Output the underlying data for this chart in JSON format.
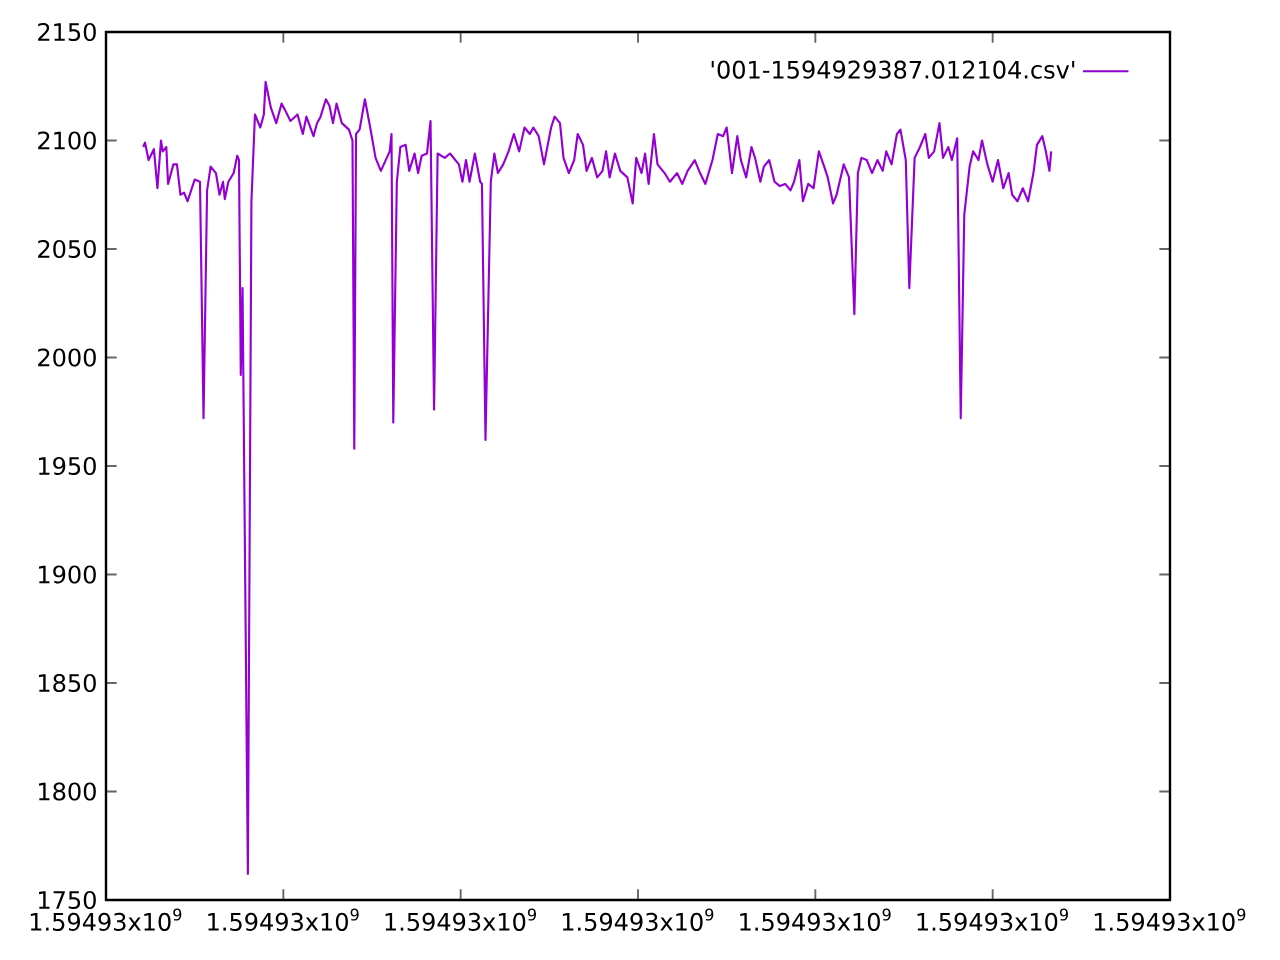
{
  "chart_data": {
    "type": "line",
    "x": [
      1594929381,
      1594929382,
      1594929384,
      1594929387,
      1594929389,
      1594929391,
      1594929392,
      1594929394,
      1594929395,
      1594929398,
      1594929400,
      1594929402,
      1594929404,
      1594929406,
      1594929410,
      1594929413,
      1594929415,
      1594929417,
      1594929419,
      1594929422,
      1594929424,
      1594929426,
      1594929427,
      1594929429,
      1594929432,
      1594929434,
      1594929435,
      1594929436,
      1594929437,
      1594929440,
      1594929442,
      1594929444,
      1594929447,
      1594929449,
      1594929450,
      1594929453,
      1594929456,
      1594929459,
      1594929461,
      1594929464,
      1594929468,
      1594929471,
      1594929473,
      1594929477,
      1594929479,
      1594929481,
      1594929484,
      1594929486,
      1594929488,
      1594929490,
      1594929493,
      1594929497,
      1594929499,
      1594929500,
      1594929501,
      1594929503,
      1594929506,
      1594929509,
      1594929512,
      1594929515,
      1594929520,
      1594929521,
      1594929522,
      1594929524,
      1594929526,
      1594929529,
      1594929531,
      1594929534,
      1594929536,
      1594929538,
      1594929541,
      1594929543,
      1594929545,
      1594929547,
      1594929551,
      1594929554,
      1594929559,
      1594929561,
      1594929563,
      1594929565,
      1594929568,
      1594929571,
      1594929572,
      1594929574,
      1594929577,
      1594929579,
      1594929581,
      1594929584,
      1594929587,
      1594929590,
      1594929593,
      1594929596,
      1594929599,
      1594929601,
      1594929604,
      1594929607,
      1594929611,
      1594929613,
      1594929616,
      1594929618,
      1594929621,
      1594929624,
      1594929626,
      1594929629,
      1594929631,
      1594929634,
      1594929637,
      1594929640,
      1594929642,
      1594929644,
      1594929647,
      1594929650,
      1594929654,
      1594929657,
      1594929659,
      1594929662,
      1594929664,
      1594929666,
      1594929669,
      1594929671,
      1594929675,
      1594929678,
      1594929682,
      1594929685,
      1594929688,
      1594929692,
      1594929695,
      1594929698,
      1594929702,
      1594929705,
      1594929708,
      1594929710,
      1594929713,
      1594929716,
      1594929718,
      1594929721,
      1594929724,
      1594929726,
      1594929729,
      1594929731,
      1594929734,
      1594929737,
      1594929740,
      1594929743,
      1594929746,
      1594929748,
      1594929751,
      1594929753,
      1594929756,
      1594929759,
      1594929762,
      1594929765,
      1594929767,
      1594929770,
      1594929772,
      1594929776,
      1594929779,
      1594929782,
      1594929784,
      1594929786,
      1594929789,
      1594929792,
      1594929795,
      1594929798,
      1594929800,
      1594929803,
      1594929806,
      1594929808,
      1594929811,
      1594929813,
      1594929816,
      1594929819,
      1594929822,
      1594929824,
      1594929827,
      1594929830,
      1594929832,
      1594929835,
      1594929837,
      1594929840,
      1594929842,
      1594929844,
      1594929847,
      1594929849,
      1594929852,
      1594929854,
      1594929857,
      1594929860,
      1594929863,
      1594929866,
      1594929869,
      1594929871,
      1594929874,
      1594929877,
      1594929880,
      1594929883,
      1594929885,
      1594929888,
      1594929890,
      1594929892,
      1594929893
    ],
    "series": [
      {
        "name": "'001-1594929387.012104.csv'",
        "color": "#9400d3",
        "values": [
          2097,
          2099,
          2091,
          2096,
          2078,
          2100,
          2095,
          2097,
          2080,
          2089,
          2089,
          2075,
          2076,
          2072,
          2082,
          2081,
          1972,
          2077,
          2088,
          2085,
          2075,
          2081,
          2073,
          2081,
          2085,
          2093,
          2091,
          1992,
          2032,
          1762,
          2072,
          2112,
          2106,
          2112,
          2127,
          2115,
          2108,
          2117,
          2114,
          2109,
          2112,
          2103,
          2111,
          2102,
          2108,
          2111,
          2119,
          2116,
          2108,
          2117,
          2108,
          2105,
          2100,
          1958,
          2103,
          2105,
          2119,
          2106,
          2092,
          2086,
          2095,
          2103,
          1970,
          2081,
          2097,
          2098,
          2086,
          2094,
          2085,
          2093,
          2094,
          2109,
          1976,
          2094,
          2092,
          2094,
          2089,
          2081,
          2091,
          2081,
          2094,
          2081,
          2080,
          1962,
          2081,
          2094,
          2085,
          2089,
          2095,
          2103,
          2095,
          2106,
          2103,
          2106,
          2102,
          2089,
          2106,
          2111,
          2108,
          2092,
          2085,
          2091,
          2103,
          2098,
          2086,
          2092,
          2083,
          2086,
          2095,
          2083,
          2094,
          2086,
          2083,
          2071,
          2092,
          2085,
          2094,
          2080,
          2103,
          2089,
          2085,
          2081,
          2085,
          2080,
          2086,
          2091,
          2085,
          2080,
          2091,
          2103,
          2102,
          2106,
          2085,
          2102,
          2091,
          2083,
          2097,
          2092,
          2081,
          2088,
          2091,
          2081,
          2079,
          2080,
          2077,
          2081,
          2091,
          2072,
          2080,
          2078,
          2095,
          2088,
          2083,
          2071,
          2075,
          2089,
          2083,
          2020,
          2085,
          2092,
          2091,
          2085,
          2091,
          2086,
          2095,
          2089,
          2103,
          2105,
          2091,
          2032,
          2092,
          2097,
          2103,
          2092,
          2095,
          2108,
          2092,
          2097,
          2091,
          2101,
          1972,
          2066,
          2088,
          2095,
          2091,
          2100,
          2089,
          2081,
          2091,
          2078,
          2085,
          2075,
          2072,
          2078,
          2072,
          2085,
          2098,
          2102,
          2095,
          2086,
          2095
        ]
      }
    ],
    "xlim": [
      1594929360,
      1594929960
    ],
    "xticks": [
      {
        "value": 1594929360,
        "label": "1.59493x10$^{9}$"
      },
      {
        "value": 1594929460,
        "label": "1.59493x10$^{9}$"
      },
      {
        "value": 1594929560,
        "label": "1.59493x10$^{9}$"
      },
      {
        "value": 1594929660,
        "label": "1.59493x10$^{9}$"
      },
      {
        "value": 1594929760,
        "label": "1.59493x10$^{9}$"
      },
      {
        "value": 1594929860,
        "label": "1.59493x10$^{9}$"
      },
      {
        "value": 1594929960,
        "label": "1.59493x10$^{9}$"
      }
    ],
    "ylim": [
      1750,
      2150
    ],
    "yticks": [
      1750,
      1800,
      1850,
      1900,
      1950,
      2000,
      2050,
      2100,
      2150
    ],
    "legend": "top right",
    "marker": "none",
    "grid": false
  }
}
